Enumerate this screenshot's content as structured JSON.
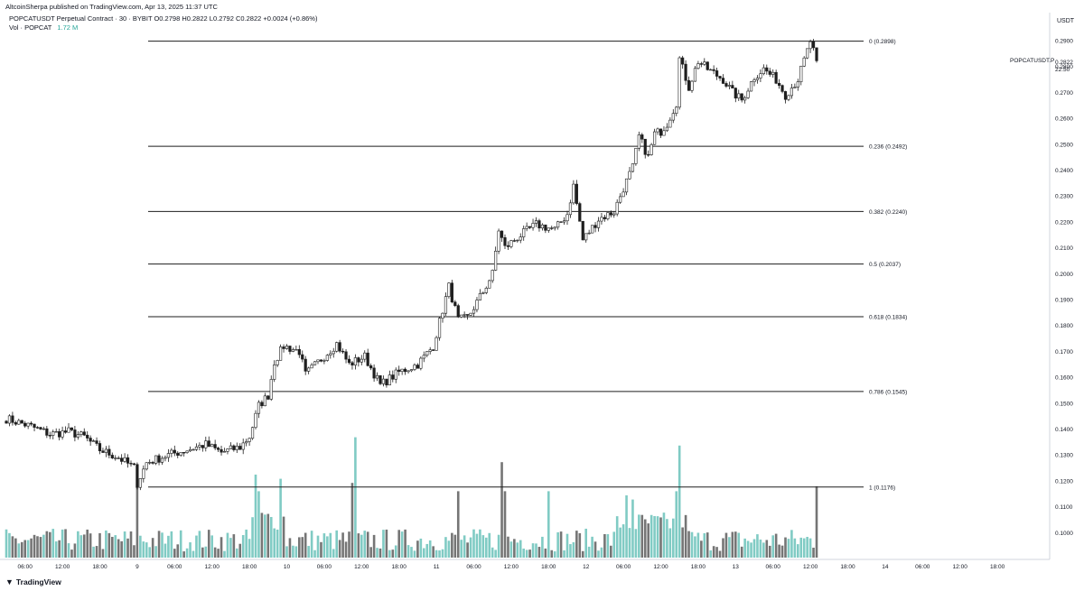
{
  "header": {
    "publish_line": "AltcoinSherpa published on TradingView.com, Apr 13, 2025 11:37 UTC",
    "symbol_line": "POPCATUSDT Perpetual Contract · 30 · BYBIT  O0.2798  H0.2822  L0.2792  C0.2822  +0.0024 (+0.86%)",
    "vol_label": "Vol · POPCAT",
    "vol_value": "1.72 M"
  },
  "price_scale": {
    "unit": "USDT",
    "symbol_tag": "POPCATUSDT.P",
    "last_price": "0.2822",
    "countdown": "22:50"
  },
  "footer": {
    "brand": "TradingView"
  },
  "colors": {
    "up_volume": "#80cbc4",
    "down_volume": "#757575",
    "candle_up": "#ffffff",
    "candle_down": "#1e1e1e",
    "fib_line": "#1e1e1e"
  },
  "chart_data": {
    "type": "candlestick",
    "title": "",
    "xlabel": "",
    "ylabel": "USDT",
    "ylim": [
      0.092,
      0.3
    ],
    "yticks": [
      0.1,
      0.11,
      0.12,
      0.13,
      0.14,
      0.15,
      0.16,
      0.17,
      0.18,
      0.19,
      0.2,
      0.21,
      0.22,
      0.23,
      0.24,
      0.25,
      0.26,
      0.27,
      0.28,
      0.29
    ],
    "ytick_labels": [
      "0.1000",
      "0.1100",
      "0.1200",
      "0.1300",
      "0.1400",
      "0.1500",
      "0.1600",
      "0.1700",
      "0.1800",
      "0.1900",
      "0.2000",
      "0.2100",
      "0.2200",
      "0.2300",
      "0.2400",
      "0.2500",
      "0.2600",
      "0.2700",
      "0.2800",
      "0.2900"
    ],
    "xticks": [
      {
        "label": "06:00",
        "bar": 6
      },
      {
        "label": "12:00",
        "bar": 18
      },
      {
        "label": "18:00",
        "bar": 30
      },
      {
        "label": "9",
        "bar": 42
      },
      {
        "label": "06:00",
        "bar": 54
      },
      {
        "label": "12:00",
        "bar": 66
      },
      {
        "label": "18:00",
        "bar": 78
      },
      {
        "label": "10",
        "bar": 90
      },
      {
        "label": "06:00",
        "bar": 102
      },
      {
        "label": "12:00",
        "bar": 114
      },
      {
        "label": "18:00",
        "bar": 126
      },
      {
        "label": "11",
        "bar": 138
      },
      {
        "label": "06:00",
        "bar": 150
      },
      {
        "label": "12:00",
        "bar": 162
      },
      {
        "label": "18:00",
        "bar": 174
      },
      {
        "label": "12",
        "bar": 186
      },
      {
        "label": "06:00",
        "bar": 198
      },
      {
        "label": "12:00",
        "bar": 210
      },
      {
        "label": "18:00",
        "bar": 222
      },
      {
        "label": "13",
        "bar": 234
      },
      {
        "label": "06:00",
        "bar": 246
      },
      {
        "label": "12:00",
        "bar": 258
      },
      {
        "label": "18:00",
        "bar": 270
      },
      {
        "label": "14",
        "bar": 282
      },
      {
        "label": "06:00",
        "bar": 294
      },
      {
        "label": "12:00",
        "bar": 306
      },
      {
        "label": "18:00",
        "bar": 318
      }
    ],
    "fib_levels": [
      {
        "label": "0 (0.2898)",
        "value": 0.2898
      },
      {
        "label": "0.236 (0.2492)",
        "value": 0.2492
      },
      {
        "label": "0.382 (0.2240)",
        "value": 0.224
      },
      {
        "label": "0.5 (0.2037)",
        "value": 0.2037
      },
      {
        "label": "0.618 (0.1834)",
        "value": 0.1834
      },
      {
        "label": "0.786 (0.1545)",
        "value": 0.1545
      },
      {
        "label": "1 (0.1176)",
        "value": 0.1176
      }
    ],
    "anchors": [
      [
        0,
        0.144
      ],
      [
        8,
        0.141
      ],
      [
        14,
        0.138
      ],
      [
        20,
        0.139
      ],
      [
        25,
        0.137
      ],
      [
        30,
        0.132
      ],
      [
        36,
        0.129
      ],
      [
        41,
        0.125
      ],
      [
        42,
        0.119
      ],
      [
        45,
        0.127
      ],
      [
        52,
        0.13
      ],
      [
        58,
        0.132
      ],
      [
        64,
        0.134
      ],
      [
        69,
        0.131
      ],
      [
        75,
        0.133
      ],
      [
        78,
        0.137
      ],
      [
        81,
        0.149
      ],
      [
        84,
        0.153
      ],
      [
        86,
        0.166
      ],
      [
        89,
        0.172
      ],
      [
        94,
        0.17
      ],
      [
        96,
        0.161
      ],
      [
        101,
        0.167
      ],
      [
        106,
        0.173
      ],
      [
        110,
        0.165
      ],
      [
        115,
        0.168
      ],
      [
        120,
        0.157
      ],
      [
        126,
        0.162
      ],
      [
        132,
        0.165
      ],
      [
        137,
        0.172
      ],
      [
        140,
        0.186
      ],
      [
        142,
        0.195
      ],
      [
        145,
        0.182
      ],
      [
        148,
        0.183
      ],
      [
        153,
        0.193
      ],
      [
        156,
        0.2
      ],
      [
        158,
        0.217
      ],
      [
        160,
        0.21
      ],
      [
        164,
        0.214
      ],
      [
        170,
        0.219
      ],
      [
        176,
        0.217
      ],
      [
        180,
        0.223
      ],
      [
        182,
        0.234
      ],
      [
        185,
        0.213
      ],
      [
        190,
        0.221
      ],
      [
        195,
        0.224
      ],
      [
        198,
        0.233
      ],
      [
        201,
        0.241
      ],
      [
        203,
        0.253
      ],
      [
        206,
        0.245
      ],
      [
        208,
        0.254
      ],
      [
        210,
        0.255
      ],
      [
        212,
        0.258
      ],
      [
        215,
        0.266
      ],
      [
        216,
        0.283
      ],
      [
        219,
        0.272
      ],
      [
        222,
        0.282
      ],
      [
        225,
        0.279
      ],
      [
        230,
        0.275
      ],
      [
        233,
        0.27
      ],
      [
        236,
        0.267
      ],
      [
        240,
        0.276
      ],
      [
        243,
        0.279
      ],
      [
        247,
        0.275
      ],
      [
        250,
        0.269
      ],
      [
        254,
        0.275
      ],
      [
        257,
        0.286
      ],
      [
        258,
        0.2898
      ],
      [
        260,
        0.2822
      ]
    ],
    "volume_unit": "M",
    "volume_max": 3.2,
    "volume_spikes": [
      {
        "bar": 42,
        "value": 1.8
      },
      {
        "bar": 80,
        "value": 2.0
      },
      {
        "bar": 81,
        "value": 1.6
      },
      {
        "bar": 88,
        "value": 1.9
      },
      {
        "bar": 112,
        "value": 2.9
      },
      {
        "bar": 111,
        "value": 1.8
      },
      {
        "bar": 145,
        "value": 1.6
      },
      {
        "bar": 159,
        "value": 2.3
      },
      {
        "bar": 160,
        "value": 1.6
      },
      {
        "bar": 174,
        "value": 1.6
      },
      {
        "bar": 199,
        "value": 1.5
      },
      {
        "bar": 201,
        "value": 1.4
      },
      {
        "bar": 216,
        "value": 2.7
      },
      {
        "bar": 215,
        "value": 1.6
      },
      {
        "bar": 260,
        "value": 1.72
      }
    ]
  }
}
